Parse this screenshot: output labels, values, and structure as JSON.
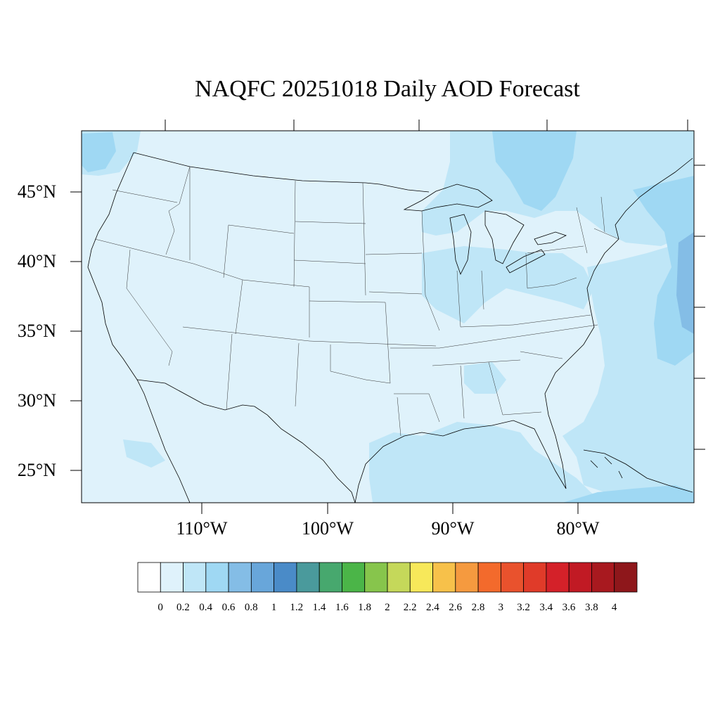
{
  "title": "NAQFC 20251018 Daily AOD Forecast",
  "lat_labels": [
    "45°N",
    "40°N",
    "35°N",
    "30°N",
    "25°N"
  ],
  "lon_labels": [
    "110°W",
    "100°W",
    "90°W",
    "80°W"
  ],
  "colorbar": {
    "labels": [
      "0",
      "0.2",
      "0.4",
      "0.6",
      "0.8",
      "1",
      "1.2",
      "1.4",
      "1.6",
      "1.8",
      "2",
      "2.2",
      "2.4",
      "2.6",
      "2.8",
      "3",
      "3.2",
      "3.4",
      "3.6",
      "3.8",
      "4"
    ],
    "colors": [
      "#ffffff",
      "#dff2fb",
      "#bfe6f7",
      "#9fd8f3",
      "#84bde6",
      "#68a6da",
      "#4a8bc8",
      "#4a9a9c",
      "#47a86e",
      "#4bb548",
      "#87c54c",
      "#c5d85a",
      "#f7e85a",
      "#f7c14a",
      "#f59a3f",
      "#f36a2c",
      "#e9522d",
      "#e03b29",
      "#d42129",
      "#c11a24",
      "#a8191f",
      "#8e171b"
    ]
  },
  "map": {
    "region": "Contiguous United States",
    "variable": "AOD",
    "background_color": "#dff2fb",
    "aod_regions": [
      {
        "level": "0.2-0.4",
        "color": "#bfe6f7",
        "area": "Ohio River Valley / Midwest"
      },
      {
        "level": "0.2-0.4",
        "color": "#bfe6f7",
        "area": "Gulf of Mexico and Atlantic offshore"
      },
      {
        "level": "0.4-0.6",
        "color": "#9fd8f3",
        "area": "Canada north of Great Lakes and Atlantic offshore"
      },
      {
        "level": "0.6-0.8",
        "color": "#84bde6",
        "area": "Western Atlantic near 38°N"
      }
    ]
  }
}
